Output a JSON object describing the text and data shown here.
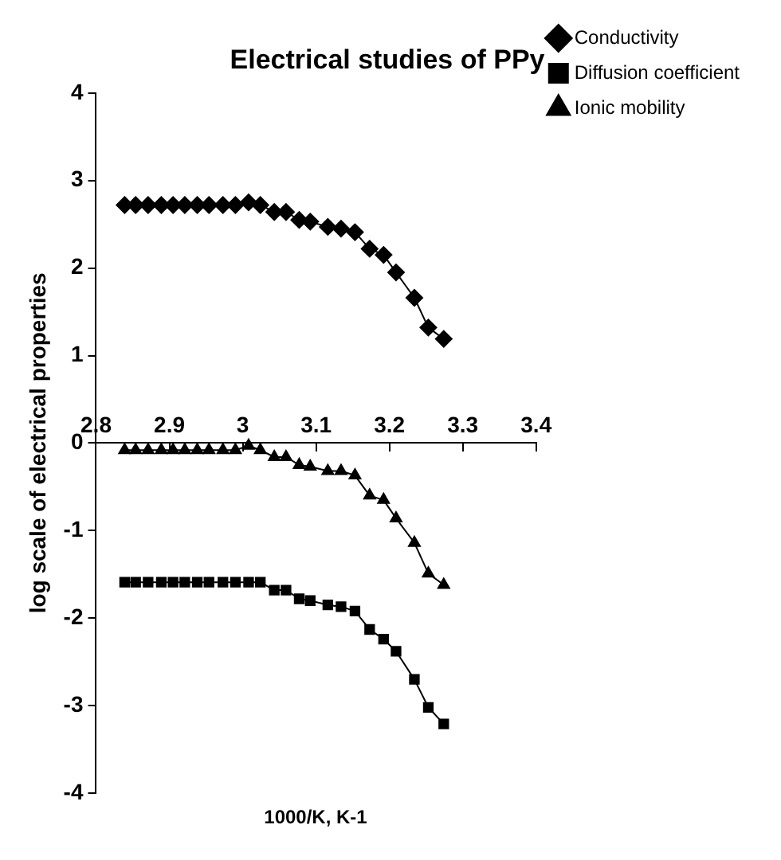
{
  "chart_data": {
    "type": "line",
    "title": "Electrical studies of PPy",
    "xlabel": "1000/K, K-1",
    "ylabel": "log scale of electrical properties",
    "x": [
      2.839,
      2.854,
      2.871,
      2.889,
      2.905,
      2.921,
      2.938,
      2.954,
      2.973,
      2.99,
      3.008,
      3.024,
      3.043,
      3.059,
      3.077,
      3.092,
      3.116,
      3.134,
      3.153,
      3.173,
      3.192,
      3.209,
      3.234,
      3.253,
      3.274
    ],
    "series": [
      {
        "name": "Conductivity",
        "color": "#000000",
        "marker": "diamond",
        "values": [
          2.72,
          2.72,
          2.72,
          2.72,
          2.72,
          2.72,
          2.72,
          2.72,
          2.72,
          2.72,
          2.75,
          2.72,
          2.64,
          2.64,
          2.55,
          2.53,
          2.47,
          2.45,
          2.41,
          2.22,
          2.15,
          1.95,
          1.66,
          1.32,
          1.19
        ]
      },
      {
        "name": "Diffusion coefficient",
        "color": "#000000",
        "marker": "square",
        "values": [
          -1.59,
          -1.59,
          -1.59,
          -1.59,
          -1.59,
          -1.59,
          -1.59,
          -1.59,
          -1.59,
          -1.59,
          -1.59,
          -1.59,
          -1.68,
          -1.68,
          -1.78,
          -1.8,
          -1.85,
          -1.87,
          -1.92,
          -2.13,
          -2.24,
          -2.38,
          -2.7,
          -3.02,
          -3.21
        ]
      },
      {
        "name": "Ionic mobility",
        "color": "#000000",
        "marker": "triangle",
        "values": [
          -0.08,
          -0.08,
          -0.08,
          -0.08,
          -0.08,
          -0.08,
          -0.08,
          -0.08,
          -0.08,
          -0.08,
          -0.03,
          -0.08,
          -0.16,
          -0.16,
          -0.25,
          -0.27,
          -0.32,
          -0.32,
          -0.37,
          -0.6,
          -0.65,
          -0.86,
          -1.14,
          -1.49,
          -1.62
        ]
      }
    ],
    "xlim": [
      2.8,
      3.4
    ],
    "xticks": [
      2.8,
      2.9,
      3,
      3.1,
      3.2,
      3.3,
      3.4
    ],
    "ylim": [
      -4,
      4
    ],
    "yticks": [
      -4,
      -3,
      -2,
      -1,
      0,
      1,
      2,
      3,
      4
    ],
    "grid": false,
    "legend": "right",
    "line_style": "solid"
  }
}
